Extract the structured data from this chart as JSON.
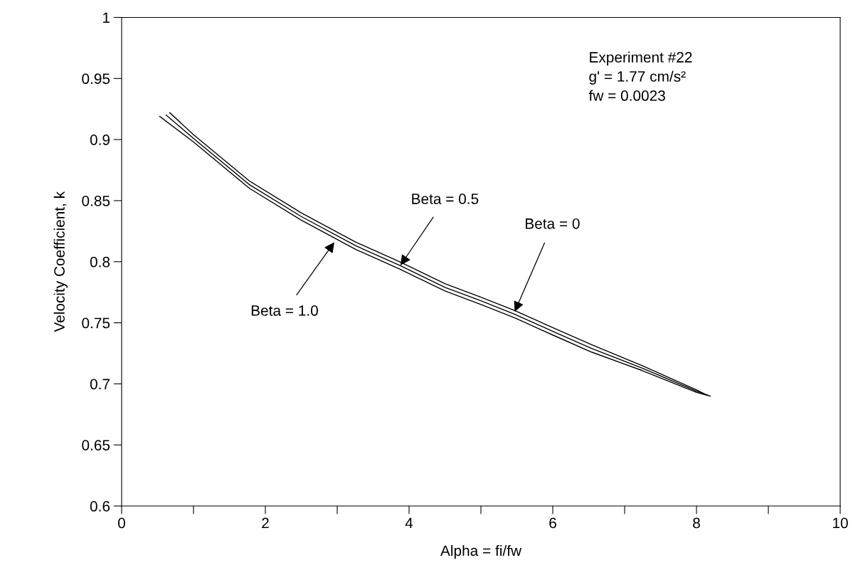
{
  "chart_data": {
    "type": "line",
    "xlabel": "Alpha = fi/fw",
    "ylabel": "Velocity Coefficient, k",
    "xlim": [
      0,
      10
    ],
    "xticks": [
      0,
      {
        "value": 1,
        "label": null
      },
      2,
      {
        "value": 3,
        "label": null
      },
      4,
      {
        "value": 5,
        "label": null
      },
      6,
      {
        "value": 7,
        "label": null
      },
      8,
      {
        "value": 9,
        "label": null
      },
      10
    ],
    "ylim": [
      0.6,
      1
    ],
    "yticks": [
      0.6,
      0.65,
      0.7,
      0.75,
      0.8,
      0.85,
      0.9,
      0.95,
      1
    ],
    "grid": false,
    "legend": false,
    "marker": "none",
    "line_style": "solid",
    "series": [
      {
        "color": "#000000",
        "x": [
          0.67,
          1.0,
          1.78,
          2.5,
          3.26,
          3.87,
          4.5,
          5.0,
          5.47,
          6.0,
          6.54,
          7.24,
          8.0,
          8.1
        ],
        "values": [
          0.922,
          0.904,
          0.866,
          0.84,
          0.816,
          0.8,
          0.782,
          0.771,
          0.76,
          0.746,
          0.732,
          0.715,
          0.695,
          0.692
        ]
      },
      {
        "color": "#000000",
        "x": [
          0.62,
          1.0,
          1.78,
          2.5,
          3.26,
          3.87,
          4.5,
          5.0,
          5.47,
          6.0,
          6.54,
          7.24,
          8.0,
          8.15
        ],
        "values": [
          0.92,
          0.901,
          0.863,
          0.837,
          0.813,
          0.797,
          0.779,
          0.768,
          0.757,
          0.743,
          0.729,
          0.713,
          0.694,
          0.691
        ]
      },
      {
        "color": "#000000",
        "x": [
          0.53,
          1.0,
          1.78,
          2.5,
          3.26,
          3.87,
          4.5,
          5.0,
          5.47,
          6.0,
          6.54,
          7.24,
          8.0,
          8.19
        ],
        "values": [
          0.919,
          0.898,
          0.86,
          0.834,
          0.81,
          0.794,
          0.776,
          0.765,
          0.754,
          0.74,
          0.726,
          0.711,
          0.693,
          0.69
        ]
      }
    ],
    "annotations": [
      "Experiment #22\ng' = 1.77 cm/s²\nfw = 0.0023",
      {
        "text": "Beta = 0.5",
        "x": 3.88,
        "y": 0.797
      },
      {
        "text": "Beta = 0",
        "x": 5.47,
        "y": 0.759
      },
      {
        "text": "Beta = 1.0",
        "x": 2.96,
        "y": 0.816
      }
    ]
  }
}
